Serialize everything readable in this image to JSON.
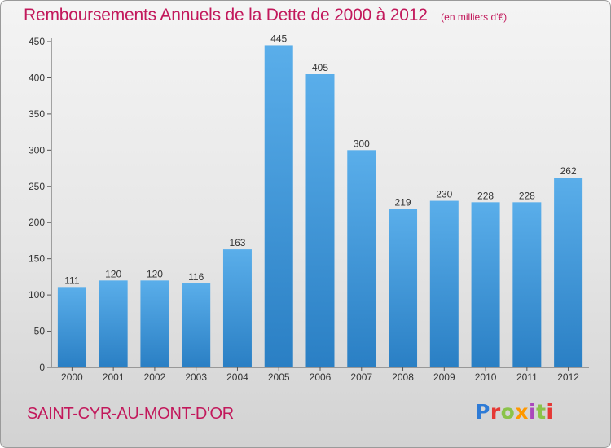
{
  "title": "Remboursements Annuels de la Dette de 2000 à 2012",
  "subtitle": "(en milliers d'€)",
  "commune": "SAINT-CYR-AU-MONT-D'OR",
  "brand": "Proxiti",
  "colors": {
    "title": "#c2185b",
    "bar_top": "#5aaeea",
    "bar_bottom": "#2a7fc4"
  },
  "chart_data": {
    "type": "bar",
    "categories": [
      "2000",
      "2001",
      "2002",
      "2003",
      "2004",
      "2005",
      "2006",
      "2007",
      "2008",
      "2009",
      "2010",
      "2011",
      "2012"
    ],
    "values": [
      111,
      120,
      120,
      116,
      163,
      445,
      405,
      300,
      219,
      230,
      228,
      228,
      262
    ],
    "ylim": [
      0,
      450
    ],
    "yticks": [
      0,
      50,
      100,
      150,
      200,
      250,
      300,
      350,
      400,
      450
    ],
    "grid": false
  }
}
